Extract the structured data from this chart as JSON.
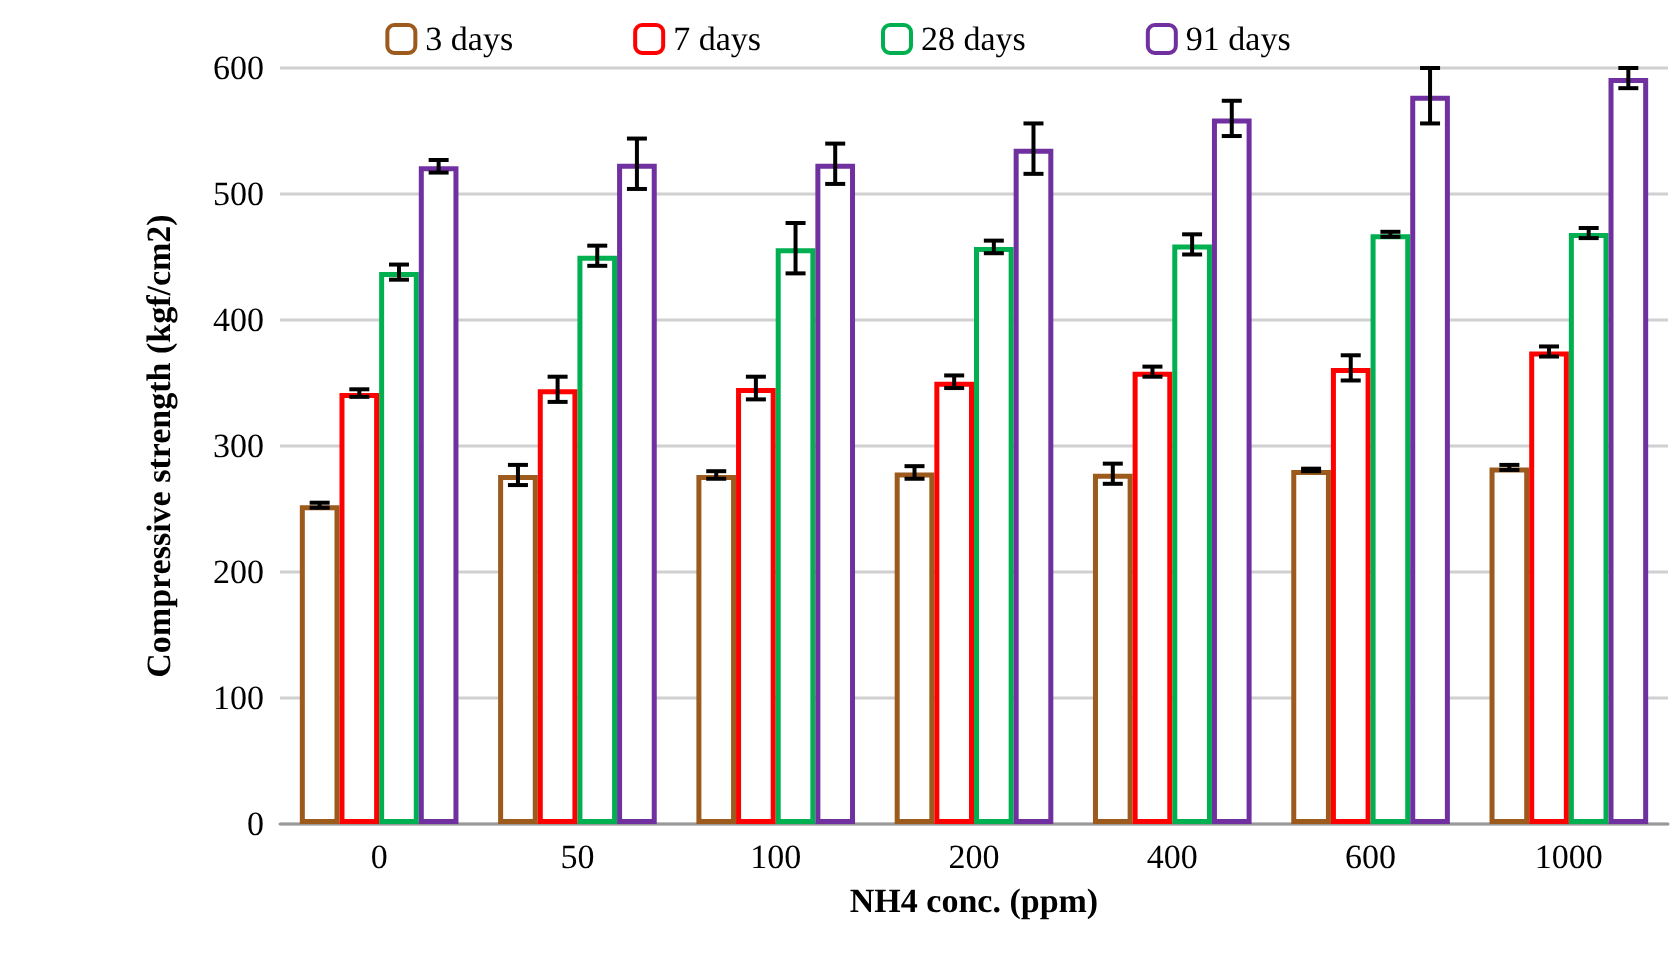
{
  "chart_data": {
    "type": "bar",
    "xlabel": "NH4 conc. (ppm)",
    "ylabel": "Compressive strength (kgf/cm2)",
    "categories": [
      "0",
      "50",
      "100",
      "200",
      "400",
      "600",
      "1000"
    ],
    "series": [
      {
        "name": "3 days",
        "color": "#9c5a1c",
        "values": [
          253,
          277,
          277,
          279,
          278,
          281,
          283
        ],
        "errors": [
          2,
          8,
          3,
          5,
          8,
          1,
          2
        ]
      },
      {
        "name": "7 days",
        "color": "#ff0000",
        "values": [
          342,
          345,
          346,
          351,
          359,
          362,
          375
        ],
        "errors": [
          3,
          10,
          9,
          5,
          4,
          10,
          4
        ]
      },
      {
        "name": "28 days",
        "color": "#00b050",
        "values": [
          438,
          451,
          457,
          458,
          460,
          468,
          469
        ],
        "errors": [
          6,
          8,
          20,
          5,
          8,
          2,
          4
        ]
      },
      {
        "name": "91 days",
        "color": "#7030a0",
        "values": [
          522,
          524,
          524,
          536,
          560,
          578,
          592
        ],
        "errors": [
          5,
          20,
          16,
          20,
          14,
          22,
          8
        ]
      }
    ],
    "ylim": [
      0,
      600
    ],
    "yticks": [
      0,
      100,
      200,
      300,
      400,
      500,
      600
    ],
    "grid": "y",
    "legend": "top"
  }
}
